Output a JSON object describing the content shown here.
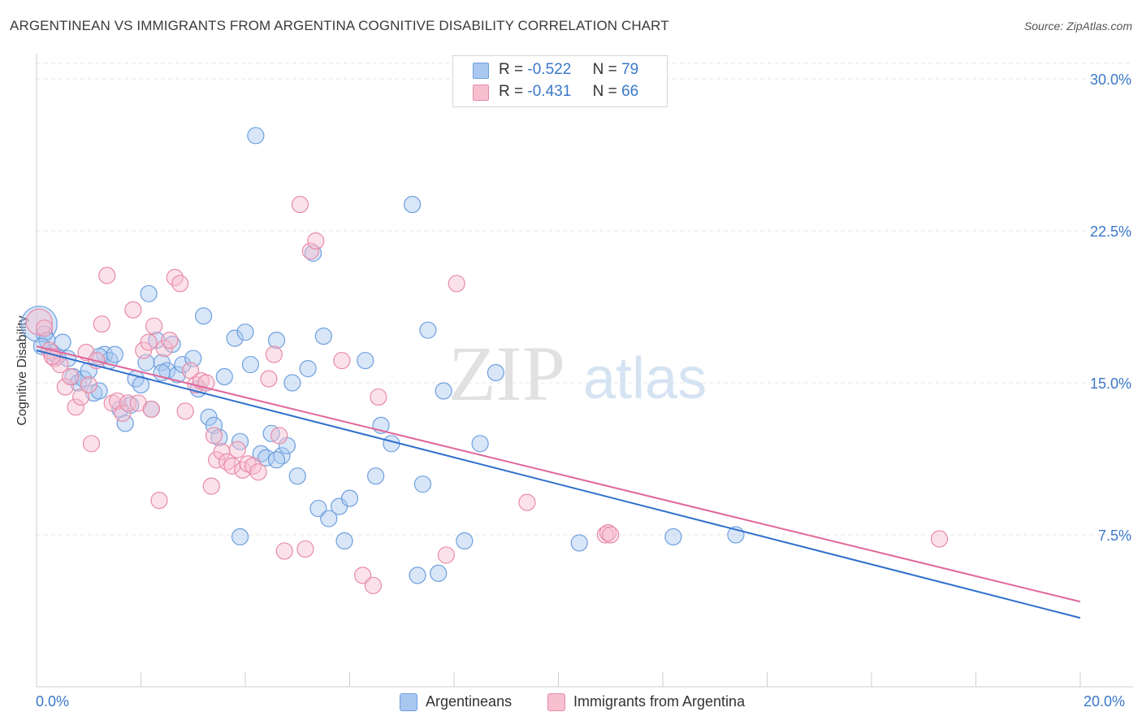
{
  "title": "ARGENTINEAN VS IMMIGRANTS FROM ARGENTINA COGNITIVE DISABILITY CORRELATION CHART",
  "source": "Source: ZipAtlas.com",
  "watermark": {
    "zip": "ZIP",
    "atlas": "atlas"
  },
  "legend_top": [
    {
      "r_label": "R =",
      "r_value": "-0.522",
      "n_label": "N =",
      "n_value": "79",
      "color": "#a9c8f0",
      "stroke": "#6d9fde"
    },
    {
      "r_label": "R =",
      "r_value": "-0.431",
      "n_label": "N =",
      "n_value": "66",
      "color": "#f7bfd0",
      "stroke": "#e98aa8"
    }
  ],
  "legend_bottom": [
    {
      "label": "Argentineans",
      "color": "#a9c8f0",
      "stroke": "#6d9fde"
    },
    {
      "label": "Immigrants from Argentina",
      "color": "#f7bfd0",
      "stroke": "#e98aa8"
    }
  ],
  "chart_data": {
    "type": "scatter",
    "title": "ARGENTINEAN VS IMMIGRANTS FROM ARGENTINA COGNITIVE DISABILITY CORRELATION CHART",
    "xlabel": "",
    "ylabel": "Cognitive Disability",
    "xlim": [
      0,
      20
    ],
    "ylim": [
      0,
      30
    ],
    "x_tick_labels": [
      "0.0%",
      "20.0%"
    ],
    "y_ticks": [
      7.5,
      15.0,
      22.5,
      30.0
    ],
    "y_tick_labels": [
      "7.5%",
      "15.0%",
      "22.5%",
      "30.0%"
    ],
    "grid": true,
    "legend_position": "top-center",
    "colors": {
      "blue": "#6d9fde",
      "pink": "#e98aa8",
      "blue_line": "#2f6fcc",
      "pink_line": "#e0679a"
    },
    "series": [
      {
        "name": "Argentineans",
        "color": "#6d9fde",
        "trend": {
          "x": [
            0,
            20
          ],
          "y": [
            16.6,
            3.4
          ]
        },
        "points": [
          [
            0.05,
            17.9
          ],
          [
            0.15,
            17.4
          ],
          [
            0.2,
            17.1
          ],
          [
            0.3,
            16.5
          ],
          [
            0.4,
            16.3
          ],
          [
            0.5,
            17.0
          ],
          [
            0.6,
            16.2
          ],
          [
            0.7,
            15.3
          ],
          [
            0.8,
            15.0
          ],
          [
            0.9,
            15.2
          ],
          [
            1.0,
            15.6
          ],
          [
            1.1,
            14.5
          ],
          [
            1.2,
            14.6
          ],
          [
            1.3,
            16.4
          ],
          [
            1.4,
            16.1
          ],
          [
            1.5,
            16.4
          ],
          [
            1.6,
            13.7
          ],
          [
            1.7,
            13.0
          ],
          [
            1.8,
            13.9
          ],
          [
            1.9,
            15.2
          ],
          [
            2.0,
            14.9
          ],
          [
            2.1,
            16.0
          ],
          [
            2.15,
            19.4
          ],
          [
            2.2,
            13.7
          ],
          [
            2.3,
            17.1
          ],
          [
            2.4,
            16.0
          ],
          [
            2.5,
            15.6
          ],
          [
            2.6,
            16.9
          ],
          [
            2.7,
            15.4
          ],
          [
            2.8,
            15.9
          ],
          [
            3.0,
            16.2
          ],
          [
            3.1,
            14.7
          ],
          [
            3.2,
            18.3
          ],
          [
            3.3,
            13.3
          ],
          [
            3.4,
            12.9
          ],
          [
            3.5,
            12.3
          ],
          [
            3.6,
            15.3
          ],
          [
            3.8,
            17.2
          ],
          [
            3.9,
            7.4
          ],
          [
            4.0,
            17.5
          ],
          [
            4.1,
            15.9
          ],
          [
            4.2,
            27.2
          ],
          [
            4.3,
            11.5
          ],
          [
            4.4,
            11.3
          ],
          [
            4.5,
            12.5
          ],
          [
            4.6,
            17.1
          ],
          [
            4.7,
            11.4
          ],
          [
            4.8,
            11.9
          ],
          [
            4.9,
            15.0
          ],
          [
            5.0,
            10.4
          ],
          [
            5.2,
            15.7
          ],
          [
            5.3,
            21.4
          ],
          [
            5.4,
            8.8
          ],
          [
            5.5,
            17.3
          ],
          [
            5.6,
            8.3
          ],
          [
            5.8,
            8.9
          ],
          [
            5.9,
            7.2
          ],
          [
            6.0,
            9.3
          ],
          [
            6.3,
            16.1
          ],
          [
            6.5,
            10.4
          ],
          [
            6.6,
            12.9
          ],
          [
            6.8,
            12.0
          ],
          [
            7.2,
            23.8
          ],
          [
            7.3,
            5.5
          ],
          [
            7.4,
            10.0
          ],
          [
            7.5,
            17.6
          ],
          [
            7.7,
            5.6
          ],
          [
            7.8,
            14.6
          ],
          [
            8.2,
            7.2
          ],
          [
            8.5,
            12.0
          ],
          [
            8.8,
            15.5
          ],
          [
            10.4,
            7.1
          ],
          [
            12.2,
            7.4
          ],
          [
            13.4,
            7.5
          ],
          [
            0.1,
            16.8
          ],
          [
            1.2,
            16.3
          ],
          [
            2.4,
            15.5
          ],
          [
            3.9,
            12.1
          ],
          [
            4.6,
            11.2
          ]
        ]
      },
      {
        "name": "Immigrants from Argentina",
        "color": "#e98aa8",
        "trend": {
          "x": [
            0,
            20
          ],
          "y": [
            16.8,
            4.2
          ]
        },
        "points": [
          [
            0.05,
            18.0
          ],
          [
            0.15,
            17.7
          ],
          [
            0.25,
            16.6
          ],
          [
            0.35,
            16.2
          ],
          [
            0.45,
            15.9
          ],
          [
            0.55,
            14.8
          ],
          [
            0.65,
            15.3
          ],
          [
            0.75,
            13.8
          ],
          [
            0.85,
            14.3
          ],
          [
            0.95,
            16.5
          ],
          [
            1.05,
            12.0
          ],
          [
            1.15,
            16.1
          ],
          [
            1.25,
            17.9
          ],
          [
            1.35,
            20.3
          ],
          [
            1.45,
            14.0
          ],
          [
            1.55,
            14.1
          ],
          [
            1.65,
            13.5
          ],
          [
            1.75,
            14.0
          ],
          [
            1.85,
            18.6
          ],
          [
            1.95,
            14.0
          ],
          [
            2.05,
            16.6
          ],
          [
            2.15,
            17.0
          ],
          [
            2.25,
            17.8
          ],
          [
            2.35,
            9.2
          ],
          [
            2.45,
            16.7
          ],
          [
            2.55,
            17.1
          ],
          [
            2.65,
            20.2
          ],
          [
            2.75,
            19.9
          ],
          [
            2.85,
            13.6
          ],
          [
            2.95,
            15.6
          ],
          [
            3.05,
            14.9
          ],
          [
            3.15,
            15.1
          ],
          [
            3.25,
            15.0
          ],
          [
            3.35,
            9.9
          ],
          [
            3.45,
            11.2
          ],
          [
            3.55,
            11.6
          ],
          [
            3.65,
            11.1
          ],
          [
            3.75,
            10.9
          ],
          [
            3.85,
            11.7
          ],
          [
            3.95,
            10.7
          ],
          [
            4.05,
            11.0
          ],
          [
            4.15,
            10.9
          ],
          [
            4.25,
            10.6
          ],
          [
            4.45,
            15.2
          ],
          [
            4.55,
            16.4
          ],
          [
            4.65,
            12.4
          ],
          [
            4.75,
            6.7
          ],
          [
            5.05,
            23.8
          ],
          [
            5.15,
            6.8
          ],
          [
            5.25,
            21.5
          ],
          [
            5.35,
            22.0
          ],
          [
            5.85,
            16.1
          ],
          [
            6.25,
            5.5
          ],
          [
            6.45,
            5.0
          ],
          [
            6.55,
            14.3
          ],
          [
            7.85,
            6.5
          ],
          [
            8.05,
            19.9
          ],
          [
            9.4,
            9.1
          ],
          [
            10.9,
            7.5
          ],
          [
            10.95,
            7.6
          ],
          [
            11.0,
            7.5
          ],
          [
            17.3,
            7.3
          ],
          [
            0.3,
            16.3
          ],
          [
            1.0,
            14.9
          ],
          [
            2.2,
            13.7
          ],
          [
            3.4,
            12.4
          ]
        ]
      }
    ]
  }
}
